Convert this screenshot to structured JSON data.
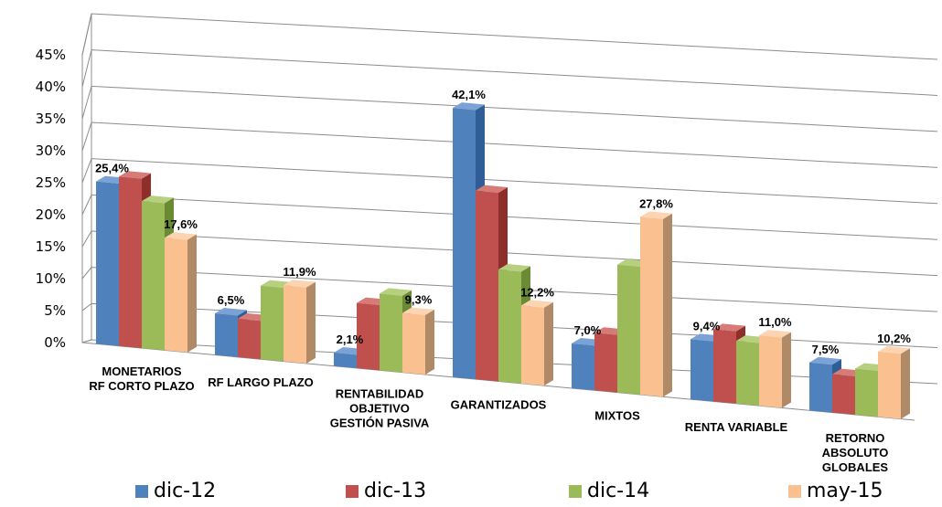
{
  "chart_data": {
    "type": "bar",
    "title": "",
    "xlabel": "",
    "ylabel": "",
    "ylim": [
      0,
      45
    ],
    "y_ticks": [
      "0%",
      "5%",
      "10%",
      "15%",
      "20%",
      "25%",
      "30%",
      "35%",
      "40%",
      "45%"
    ],
    "grid": true,
    "legend_position": "bottom",
    "categories": [
      [
        "MONETARIOS",
        "RF CORTO PLAZO"
      ],
      [
        "RF LARGO PLAZO"
      ],
      [
        "RENTABILIDAD",
        "OBJETIVO",
        "GESTIÓN PASIVA"
      ],
      [
        "GARANTIZADOS"
      ],
      [
        "MIXTOS"
      ],
      [
        "RENTA VARIABLE"
      ],
      [
        "RETORNO",
        "ABSOLUTO",
        "GLOBALES"
      ]
    ],
    "series": [
      {
        "name": "dic-12",
        "color": "#4f81bd",
        "side": "#2f5d96",
        "top": "#7aa2d4",
        "values": [
          25.4,
          6.5,
          2.1,
          42.1,
          7.0,
          9.4,
          7.5
        ]
      },
      {
        "name": "dic-13",
        "color": "#c0504d",
        "side": "#8e2f2c",
        "top": "#d67b78",
        "values": [
          26.5,
          6.0,
          10.2,
          29.5,
          9.0,
          11.3,
          6.0
        ]
      },
      {
        "name": "dic-14",
        "color": "#9bbb59",
        "side": "#6a8a34",
        "top": "#b6d080",
        "values": [
          23.0,
          11.5,
          12.0,
          17.5,
          20.0,
          9.8,
          7.2
        ]
      },
      {
        "name": "may-15",
        "color": "#fac090",
        "side": "#b08a66",
        "top": "#fcd4b2",
        "values": [
          17.6,
          11.9,
          9.3,
          12.2,
          27.8,
          11.0,
          10.2
        ]
      }
    ],
    "data_labels": [
      {
        "series": 0,
        "category": 0,
        "text": "25,4%"
      },
      {
        "series": 3,
        "category": 0,
        "text": "17,6%"
      },
      {
        "series": 0,
        "category": 1,
        "text": "6,5%"
      },
      {
        "series": 3,
        "category": 1,
        "text": "11,9%"
      },
      {
        "series": 0,
        "category": 2,
        "text": "2,1%"
      },
      {
        "series": 3,
        "category": 2,
        "text": "9,3%"
      },
      {
        "series": 0,
        "category": 3,
        "text": "42,1%"
      },
      {
        "series": 3,
        "category": 3,
        "text": "12,2%"
      },
      {
        "series": 0,
        "category": 4,
        "text": "7,0%"
      },
      {
        "series": 3,
        "category": 4,
        "text": "27,8%"
      },
      {
        "series": 0,
        "category": 5,
        "text": "9,4%"
      },
      {
        "series": 3,
        "category": 5,
        "text": "11,0%"
      },
      {
        "series": 0,
        "category": 6,
        "text": "7,5%"
      },
      {
        "series": 3,
        "category": 6,
        "text": "10,2%"
      }
    ]
  }
}
